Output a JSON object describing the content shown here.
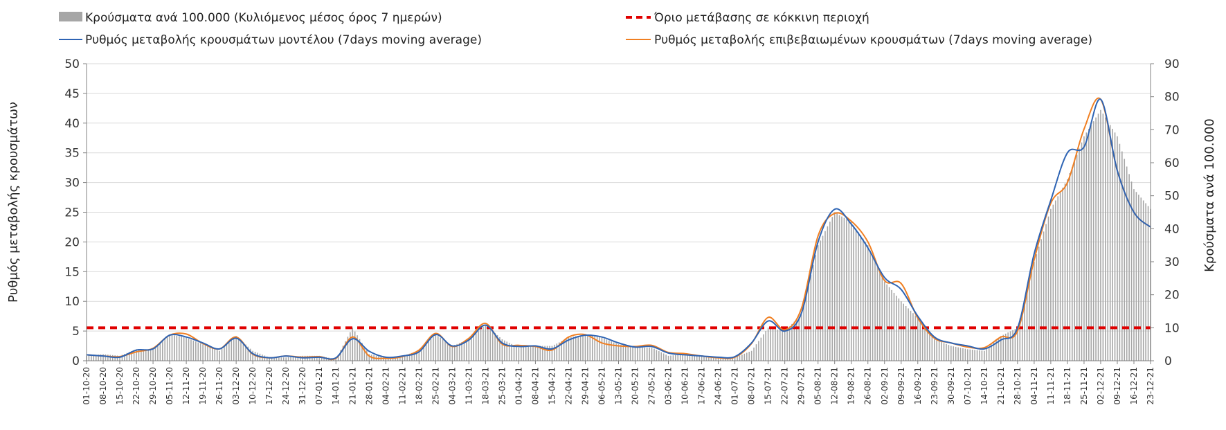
{
  "chart_data": {
    "type": "bar+line",
    "legend": {
      "placement": "top",
      "entries": [
        {
          "key": "bars",
          "label": "Κρούσματα ανά 100.000 (Κυλιόμενος μέσος όρος 7 ημερών)",
          "color": "#a6a6a6",
          "style": "bar"
        },
        {
          "key": "threshold",
          "label": "Όριο μετάβασης σε κόκκινη περιοχή",
          "color": "#e00000",
          "style": "dashed"
        },
        {
          "key": "model",
          "label": "Ρυθμός μεταβολής κρουσμάτων μοντέλου (7days moving average)",
          "color": "#2e64b4",
          "style": "line"
        },
        {
          "key": "confirmed",
          "label": "Ρυθμός μεταβολής επιβεβαιωμένων κρουσμάτων (7days moving average)",
          "color": "#f07f22",
          "style": "line"
        }
      ]
    },
    "y_left": {
      "label": "Ρυθμός μεταβολής κρουσμάτων",
      "min": 0,
      "max": 50,
      "ticks": [
        "0",
        "5",
        "10",
        "15",
        "20",
        "25",
        "30",
        "35",
        "40",
        "45",
        "50"
      ]
    },
    "y_right": {
      "label": "Κρούσματα ανά 100.000",
      "min": 0,
      "max": 90,
      "ticks": [
        "0",
        "10",
        "20",
        "30",
        "40",
        "50",
        "60",
        "70",
        "80",
        "90"
      ]
    },
    "grid": true,
    "x_tick_labels": [
      "01-10-20",
      "08-10-20",
      "15-10-20",
      "22-10-20",
      "29-10-20",
      "05-11-20",
      "12-11-20",
      "19-11-20",
      "26-11-20",
      "03-12-20",
      "10-12-20",
      "17-12-20",
      "24-12-20",
      "31-12-20",
      "07-01-21",
      "14-01-21",
      "21-01-21",
      "28-01-21",
      "04-02-21",
      "11-02-21",
      "18-02-21",
      "25-02-21",
      "04-03-21",
      "11-03-21",
      "18-03-21",
      "25-03-21",
      "01-04-21",
      "08-04-21",
      "15-04-21",
      "22-04-21",
      "29-04-21",
      "06-05-21",
      "13-05-21",
      "20-05-21",
      "27-05-21",
      "03-06-21",
      "10-06-21",
      "17-06-21",
      "24-06-21",
      "01-07-21",
      "08-07-21",
      "15-07-21",
      "22-07-21",
      "29-07-21",
      "05-08-21",
      "12-08-21",
      "19-08-21",
      "26-08-21",
      "02-09-21",
      "09-09-21",
      "16-09-21",
      "23-09-21",
      "30-09-21",
      "07-10-21",
      "14-10-21",
      "21-10-21",
      "28-10-21",
      "04-11-21",
      "11-11-21",
      "18-11-21",
      "25-11-21",
      "02-12-21",
      "09-12-21",
      "16-12-21",
      "23-12-21"
    ],
    "threshold_value": 10,
    "bars_per_100k": [
      1.5,
      2,
      1.5,
      3.5,
      3.5,
      8,
      7,
      5,
      3,
      7.5,
      3,
      1,
      1,
      1.5,
      1.5,
      0.5,
      10,
      2,
      1,
      1.5,
      3,
      8,
      4.5,
      6.5,
      11,
      6.5,
      4,
      4.5,
      4.5,
      7,
      8,
      7,
      5,
      4,
      4,
      1.5,
      2,
      1.5,
      1,
      1,
      3,
      10,
      9,
      14,
      35,
      45,
      42,
      35,
      24,
      18,
      13,
      6.5,
      4.5,
      3.5,
      3,
      7.5,
      10,
      30,
      46,
      55,
      68,
      76,
      68,
      52,
      46
    ],
    "model_rate": [
      1,
      0.8,
      0.6,
      1.8,
      2,
      4.3,
      4,
      3,
      2,
      3.8,
      1.2,
      0.5,
      0.8,
      0.5,
      0.6,
      0.5,
      3.7,
      1.6,
      0.6,
      0.8,
      1.5,
      4.4,
      2.5,
      3.5,
      6,
      3,
      2.4,
      2.5,
      2,
      3.5,
      4.3,
      4,
      3,
      2.3,
      2.4,
      1.3,
      1,
      0.8,
      0.6,
      0.7,
      3,
      6.7,
      5,
      8,
      20,
      25.5,
      23,
      19,
      14,
      12,
      7.5,
      4,
      3,
      2.5,
      2,
      3.5,
      5.5,
      18,
      27,
      35,
      36,
      44,
      32,
      25,
      22.5
    ],
    "confirmed_rate": [
      1,
      0.8,
      0.7,
      1.5,
      2.1,
      4.3,
      4.5,
      2.9,
      2,
      4,
      1.1,
      0.5,
      0.8,
      0.6,
      0.7,
      0.4,
      4,
      0.8,
      0.4,
      0.7,
      1.8,
      4.6,
      2.4,
      3.8,
      6.3,
      2.8,
      2.6,
      2.4,
      1.8,
      4,
      4.4,
      3,
      2.5,
      2.4,
      2.6,
      1.4,
      1.2,
      0.8,
      0.5,
      0.6,
      2.9,
      7.3,
      5.2,
      8.8,
      21,
      24.8,
      23.5,
      20,
      13.5,
      13,
      7.2,
      3.8,
      3,
      2.3,
      2.2,
      4,
      5,
      17,
      26.5,
      30,
      39,
      44,
      32,
      25,
      22.5
    ]
  }
}
